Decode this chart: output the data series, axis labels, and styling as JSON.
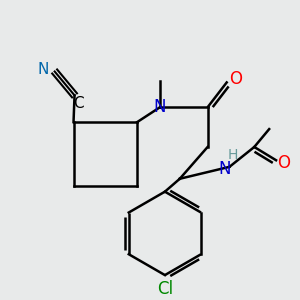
{
  "background_color": "#e8eaea",
  "bond_color": "#000000",
  "line_width": 1.8,
  "figsize": [
    3.0,
    3.0
  ],
  "dpi": 100,
  "colors": {
    "N": "#0000cc",
    "O": "#ff0000",
    "Cl": "#008800",
    "C": "#000000",
    "NH_H": "#669999",
    "N_blue": "#0000cc"
  }
}
